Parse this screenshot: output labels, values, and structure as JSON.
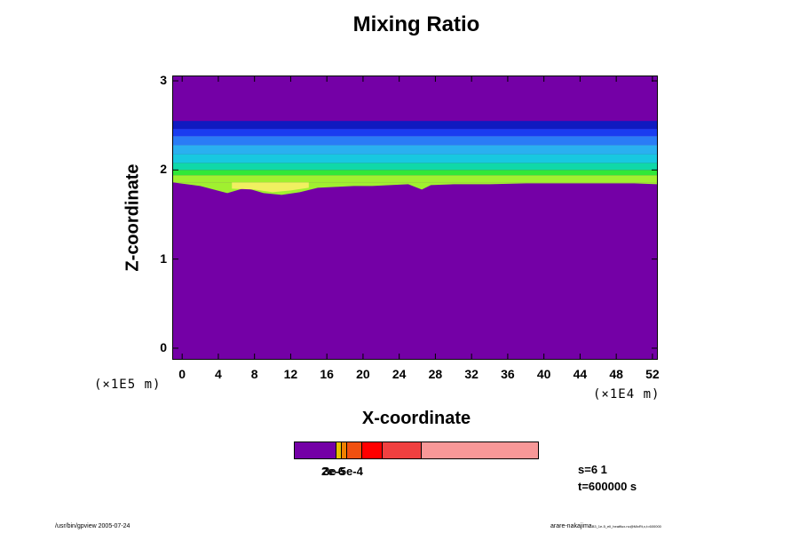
{
  "chart_data": {
    "type": "heatmap",
    "title": "Mixing Ratio",
    "xlabel": "X-coordinate",
    "ylabel": "Z-coordinate",
    "x_scale_note": "(×1E4 m)",
    "y_scale_note": "(×1E5 m)",
    "xlim": [
      -1,
      52.5
    ],
    "ylim": [
      -0.12,
      3.05
    ],
    "x_ticks": [
      "0",
      "4",
      "8",
      "12",
      "16",
      "20",
      "24",
      "28",
      "32",
      "36",
      "40",
      "44",
      "48",
      "52"
    ],
    "y_ticks": [
      "0",
      "1",
      "2",
      "3"
    ],
    "background_color": "#7400a6",
    "bands": [
      {
        "z_bottom": 2.46,
        "z_top": 2.55,
        "color": "#101ac0"
      },
      {
        "z_bottom": 2.38,
        "z_top": 2.46,
        "color": "#1a3cf0"
      },
      {
        "z_bottom": 2.28,
        "z_top": 2.38,
        "color": "#2a7cf6"
      },
      {
        "z_bottom": 2.18,
        "z_top": 2.28,
        "color": "#2ab0f0"
      },
      {
        "z_bottom": 2.08,
        "z_top": 2.18,
        "color": "#18c8e0"
      },
      {
        "z_bottom": 2.0,
        "z_top": 2.08,
        "color": "#10d8a8"
      },
      {
        "z_bottom": 1.94,
        "z_top": 2.0,
        "color": "#30e838"
      },
      {
        "z_bottom": 1.86,
        "z_top": 1.94,
        "color": "#a0f030"
      }
    ],
    "lower_edge_x": [
      -1,
      2,
      5,
      7,
      9,
      11,
      13,
      15,
      17,
      19,
      21,
      23,
      25,
      26.5,
      27.5,
      30,
      34,
      38,
      42,
      46,
      50,
      52.5
    ],
    "lower_edge_z": [
      1.86,
      1.82,
      1.74,
      1.8,
      1.74,
      1.72,
      1.75,
      1.8,
      1.81,
      1.82,
      1.82,
      1.83,
      1.84,
      1.78,
      1.83,
      1.84,
      1.84,
      1.85,
      1.85,
      1.85,
      1.85,
      1.84
    ],
    "yellow_patch_x": [
      5.5,
      8,
      10,
      12,
      14
    ],
    "yellow_patch_z": [
      1.79,
      1.78,
      1.75,
      1.77,
      1.8
    ],
    "colorbar": {
      "colors": [
        "#7400a6",
        "#e8c000",
        "#f08000",
        "#f05010",
        "#ff0000",
        "#f04040",
        "#f89898"
      ],
      "fractions": [
        0.17,
        0.02,
        0.02,
        0.06,
        0.08,
        0.16,
        0.49
      ],
      "label": "2e-6",
      "label_overlap": "3e-5e-4"
    },
    "annotation_s": "s=6 1",
    "annotation_t": "t=600000 s",
    "footer_left": "/usr/bin/gpview 2005-07-24",
    "footer_right": "arare-nakajima",
    "footer_right_small": "B3_1e-5_ell_heatflux.nc@MixRt,x,t=600000"
  }
}
